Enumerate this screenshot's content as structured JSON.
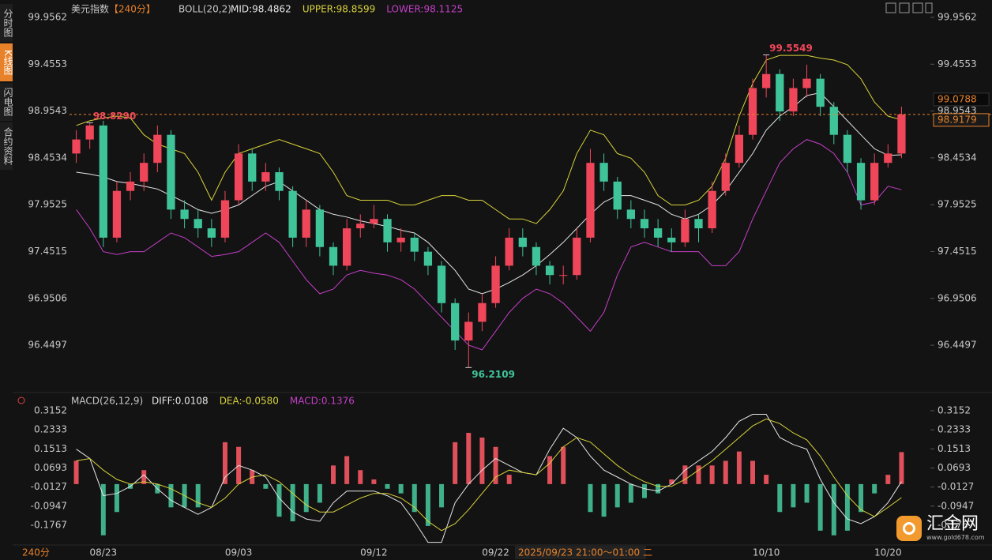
{
  "sidebar": [
    "分时图",
    "K线图",
    "闪电图",
    "合约资料"
  ],
  "logo": {
    "name": "汇金网",
    "url": "www.gold678.com"
  },
  "period_label": "240分",
  "cursor_time": "2025/09/23 21:00～01:00 二",
  "chart_data": [
    {
      "type": "candlestick",
      "title": "美元指数",
      "period": "【240分】",
      "indicator": "BOLL(20,2)",
      "categories": [
        null,
        null,
        "08/23",
        null,
        null,
        null,
        null,
        null,
        null,
        null,
        null,
        null,
        "09/03",
        null,
        null,
        null,
        null,
        null,
        null,
        null,
        null,
        null,
        "09/12",
        null,
        null,
        null,
        null,
        null,
        null,
        null,
        null,
        "09/22",
        null,
        null,
        null,
        null,
        null,
        null,
        null,
        null,
        null,
        null,
        null,
        null,
        null,
        null,
        null,
        null,
        null,
        null,
        null,
        "10/10",
        null,
        null,
        null,
        null,
        null,
        null,
        null,
        null,
        "10/20",
        null
      ],
      "open": [
        98.5,
        98.65,
        98.8,
        97.6,
        98.1,
        98.2,
        98.4,
        98.7,
        97.9,
        97.8,
        97.7,
        97.6,
        98.0,
        98.5,
        98.2,
        98.3,
        98.1,
        97.6,
        97.9,
        97.5,
        97.3,
        97.7,
        97.75,
        97.8,
        97.55,
        97.6,
        97.45,
        97.3,
        96.9,
        96.5,
        96.7,
        96.9,
        97.3,
        97.6,
        97.5,
        97.3,
        97.2,
        97.2,
        97.6,
        98.4,
        98.2,
        97.9,
        97.8,
        97.7,
        97.6,
        97.55,
        97.8,
        97.7,
        98.1,
        98.4,
        98.7,
        99.2,
        99.35,
        98.95,
        99.2,
        99.3,
        99.0,
        98.7,
        98.4,
        98.0,
        98.4,
        98.5
      ],
      "high": [
        98.75,
        98.829,
        98.85,
        98.2,
        98.3,
        98.5,
        98.8,
        98.75,
        98.0,
        97.9,
        97.8,
        98.1,
        98.6,
        98.55,
        98.4,
        98.35,
        98.15,
        98.0,
        97.95,
        97.55,
        97.8,
        97.85,
        97.95,
        97.85,
        97.7,
        97.65,
        97.5,
        97.35,
        96.95,
        96.8,
        97.0,
        97.4,
        97.7,
        97.7,
        97.55,
        97.35,
        97.3,
        97.7,
        98.55,
        98.5,
        98.25,
        98.0,
        97.9,
        97.8,
        97.7,
        97.9,
        97.85,
        98.2,
        98.5,
        98.8,
        99.3,
        99.5549,
        99.4,
        99.3,
        99.45,
        99.35,
        99.05,
        98.75,
        98.45,
        98.5,
        98.6,
        99.0
      ],
      "low": [
        98.4,
        98.55,
        97.5,
        97.55,
        98.0,
        98.1,
        98.3,
        97.8,
        97.7,
        97.6,
        97.5,
        97.55,
        97.95,
        98.1,
        98.1,
        98.0,
        97.5,
        97.5,
        97.4,
        97.2,
        97.25,
        97.6,
        97.7,
        97.45,
        97.45,
        97.35,
        97.2,
        96.8,
        96.4,
        96.2109,
        96.6,
        96.85,
        97.25,
        97.4,
        97.2,
        97.1,
        97.1,
        97.15,
        97.55,
        98.1,
        97.8,
        97.7,
        97.6,
        97.5,
        97.45,
        97.5,
        97.55,
        97.65,
        98.05,
        98.35,
        98.65,
        99.1,
        98.85,
        98.9,
        99.1,
        98.9,
        98.6,
        98.3,
        97.9,
        97.95,
        98.35,
        98.45
      ],
      "close": [
        98.65,
        98.8,
        97.6,
        98.1,
        98.2,
        98.4,
        98.7,
        97.9,
        97.8,
        97.7,
        97.6,
        98.0,
        98.5,
        98.2,
        98.3,
        98.1,
        97.6,
        97.9,
        97.5,
        97.3,
        97.7,
        97.75,
        97.8,
        97.55,
        97.6,
        97.45,
        97.3,
        96.9,
        96.5,
        96.7,
        96.9,
        97.3,
        97.6,
        97.5,
        97.3,
        97.2,
        97.2,
        97.6,
        98.4,
        98.2,
        97.9,
        97.8,
        97.7,
        97.6,
        97.55,
        97.8,
        97.7,
        98.1,
        98.4,
        98.7,
        99.2,
        99.35,
        98.95,
        99.2,
        99.3,
        99.0,
        98.7,
        98.4,
        98.0,
        98.4,
        98.5,
        98.9179
      ],
      "up_color": "#f0465a",
      "down_color": "#3fc49a",
      "series": [
        {
          "name": "MID:98.4862",
          "color": "#e6e6e6",
          "values": [
            98.3,
            98.28,
            98.25,
            98.2,
            98.18,
            98.15,
            98.12,
            98.05,
            97.98,
            97.9,
            97.86,
            97.9,
            97.95,
            98.05,
            98.15,
            98.2,
            98.1,
            98.0,
            97.9,
            97.85,
            97.82,
            97.78,
            97.75,
            97.72,
            97.68,
            97.65,
            97.55,
            97.4,
            97.25,
            97.05,
            97.0,
            97.05,
            97.12,
            97.2,
            97.3,
            97.42,
            97.55,
            97.7,
            97.85,
            97.98,
            98.05,
            98.05,
            98.0,
            97.95,
            97.85,
            97.8,
            97.85,
            97.95,
            98.1,
            98.3,
            98.5,
            98.75,
            98.9,
            99.0,
            99.12,
            99.15,
            99.0,
            98.85,
            98.7,
            98.55,
            98.48,
            98.4862
          ]
        },
        {
          "name": "UPPER:98.8599",
          "color": "#d8d23a",
          "values": [
            98.8,
            98.85,
            98.88,
            98.9,
            98.88,
            98.7,
            98.6,
            98.55,
            98.5,
            98.3,
            98.0,
            98.3,
            98.5,
            98.55,
            98.6,
            98.65,
            98.6,
            98.55,
            98.5,
            98.3,
            98.05,
            98.0,
            98.0,
            98.0,
            97.95,
            97.95,
            98.0,
            98.05,
            98.05,
            98.0,
            98.0,
            97.9,
            97.8,
            97.8,
            97.75,
            97.9,
            98.1,
            98.5,
            98.75,
            98.7,
            98.5,
            98.45,
            98.3,
            98.05,
            97.95,
            97.95,
            98.0,
            98.15,
            98.45,
            98.9,
            99.25,
            99.5,
            99.55,
            99.55,
            99.55,
            99.52,
            99.5,
            99.45,
            99.3,
            99.05,
            98.9,
            98.8599
          ]
        },
        {
          "name": "LOWER:98.1125",
          "color": "#c43fc8",
          "values": [
            97.9,
            97.7,
            97.45,
            97.42,
            97.45,
            97.45,
            97.55,
            97.65,
            97.6,
            97.5,
            97.4,
            97.42,
            97.45,
            97.55,
            97.65,
            97.55,
            97.35,
            97.15,
            97.0,
            97.05,
            97.2,
            97.25,
            97.22,
            97.2,
            97.15,
            97.05,
            96.9,
            96.75,
            96.6,
            96.45,
            96.4,
            96.6,
            96.8,
            96.95,
            97.05,
            97.0,
            96.9,
            96.75,
            96.6,
            96.8,
            97.2,
            97.5,
            97.55,
            97.5,
            97.45,
            97.45,
            97.45,
            97.3,
            97.3,
            97.45,
            97.8,
            98.1,
            98.4,
            98.55,
            98.65,
            98.6,
            98.5,
            98.3,
            97.95,
            97.98,
            98.15,
            98.1125
          ]
        }
      ],
      "ylim": [
        96.0024,
        100.0997
      ],
      "yticks": [
        99.9562,
        99.4553,
        98.9543,
        98.4534,
        97.9525,
        97.4515,
        96.9506,
        96.4497
      ],
      "annotations": [
        {
          "value": 98.829,
          "label": "98.8290"
        },
        {
          "value": 99.5549,
          "label": "99.5549"
        },
        {
          "value": 96.2109,
          "label": "96.2109"
        }
      ],
      "last_price": 98.9179,
      "cursor_price": 99.0788
    },
    {
      "type": "macd",
      "indicator": "MACD(26,12,9)",
      "series": [
        {
          "name": "DIFF:0.0108",
          "color": "#e6e6e6",
          "values": [
            0.15,
            0.11,
            -0.05,
            -0.04,
            -0.01,
            0.04,
            -0.02,
            -0.07,
            -0.1,
            -0.13,
            -0.1,
            0.03,
            0.08,
            0.06,
            0.03,
            -0.06,
            -0.12,
            -0.15,
            -0.16,
            -0.08,
            -0.03,
            -0.03,
            -0.03,
            -0.05,
            -0.08,
            -0.16,
            -0.25,
            -0.25,
            -0.08,
            0.0,
            0.06,
            0.11,
            0.08,
            0.05,
            0.04,
            0.15,
            0.24,
            0.2,
            0.12,
            0.06,
            0.03,
            0.0,
            -0.02,
            -0.03,
            0.0,
            0.06,
            0.1,
            0.14,
            0.2,
            0.27,
            0.3,
            0.3,
            0.2,
            0.17,
            0.15,
            0.02,
            -0.08,
            -0.15,
            -0.17,
            -0.14,
            -0.08,
            0.0108
          ]
        },
        {
          "name": "DEA:-0.0580",
          "color": "#d8d23a",
          "values": [
            0.1,
            0.11,
            0.06,
            0.02,
            0.0,
            0.01,
            0.0,
            -0.02,
            -0.05,
            -0.08,
            -0.1,
            -0.06,
            0.0,
            0.03,
            0.04,
            0.01,
            -0.04,
            -0.09,
            -0.12,
            -0.12,
            -0.09,
            -0.06,
            -0.04,
            -0.04,
            -0.06,
            -0.1,
            -0.16,
            -0.2,
            -0.17,
            -0.11,
            -0.04,
            0.03,
            0.06,
            0.05,
            0.04,
            0.09,
            0.16,
            0.2,
            0.18,
            0.13,
            0.08,
            0.04,
            0.01,
            -0.01,
            -0.01,
            0.02,
            0.06,
            0.1,
            0.15,
            0.2,
            0.25,
            0.28,
            0.26,
            0.22,
            0.19,
            0.12,
            0.03,
            -0.05,
            -0.11,
            -0.14,
            -0.1,
            -0.058
          ]
        },
        {
          "name": "MACD:0.1376",
          "color": "#c43fc8",
          "bars": true,
          "up_color": "#e0505a",
          "down_color": "#3fb08a",
          "values": [
            0.1,
            0.0,
            -0.22,
            -0.12,
            -0.02,
            0.06,
            -0.04,
            -0.1,
            -0.1,
            -0.1,
            0.0,
            0.18,
            0.16,
            0.06,
            -0.02,
            -0.14,
            -0.16,
            -0.12,
            -0.08,
            0.08,
            0.12,
            0.06,
            0.02,
            -0.02,
            -0.04,
            -0.12,
            -0.18,
            -0.1,
            0.18,
            0.22,
            0.2,
            0.16,
            0.04,
            0.0,
            0.0,
            0.12,
            0.16,
            0.0,
            -0.12,
            -0.14,
            -0.1,
            -0.08,
            -0.06,
            -0.04,
            0.02,
            0.08,
            0.08,
            0.08,
            0.1,
            0.14,
            0.1,
            0.04,
            -0.12,
            -0.1,
            -0.08,
            -0.2,
            -0.22,
            -0.2,
            -0.12,
            -0.04,
            0.04,
            0.1376
          ]
        }
      ],
      "ylim": [
        -0.2617,
        0.3322
      ],
      "yticks": [
        0.3152,
        0.2333,
        0.1513,
        0.0693,
        -0.0127,
        -0.0947,
        -0.1767
      ]
    }
  ]
}
